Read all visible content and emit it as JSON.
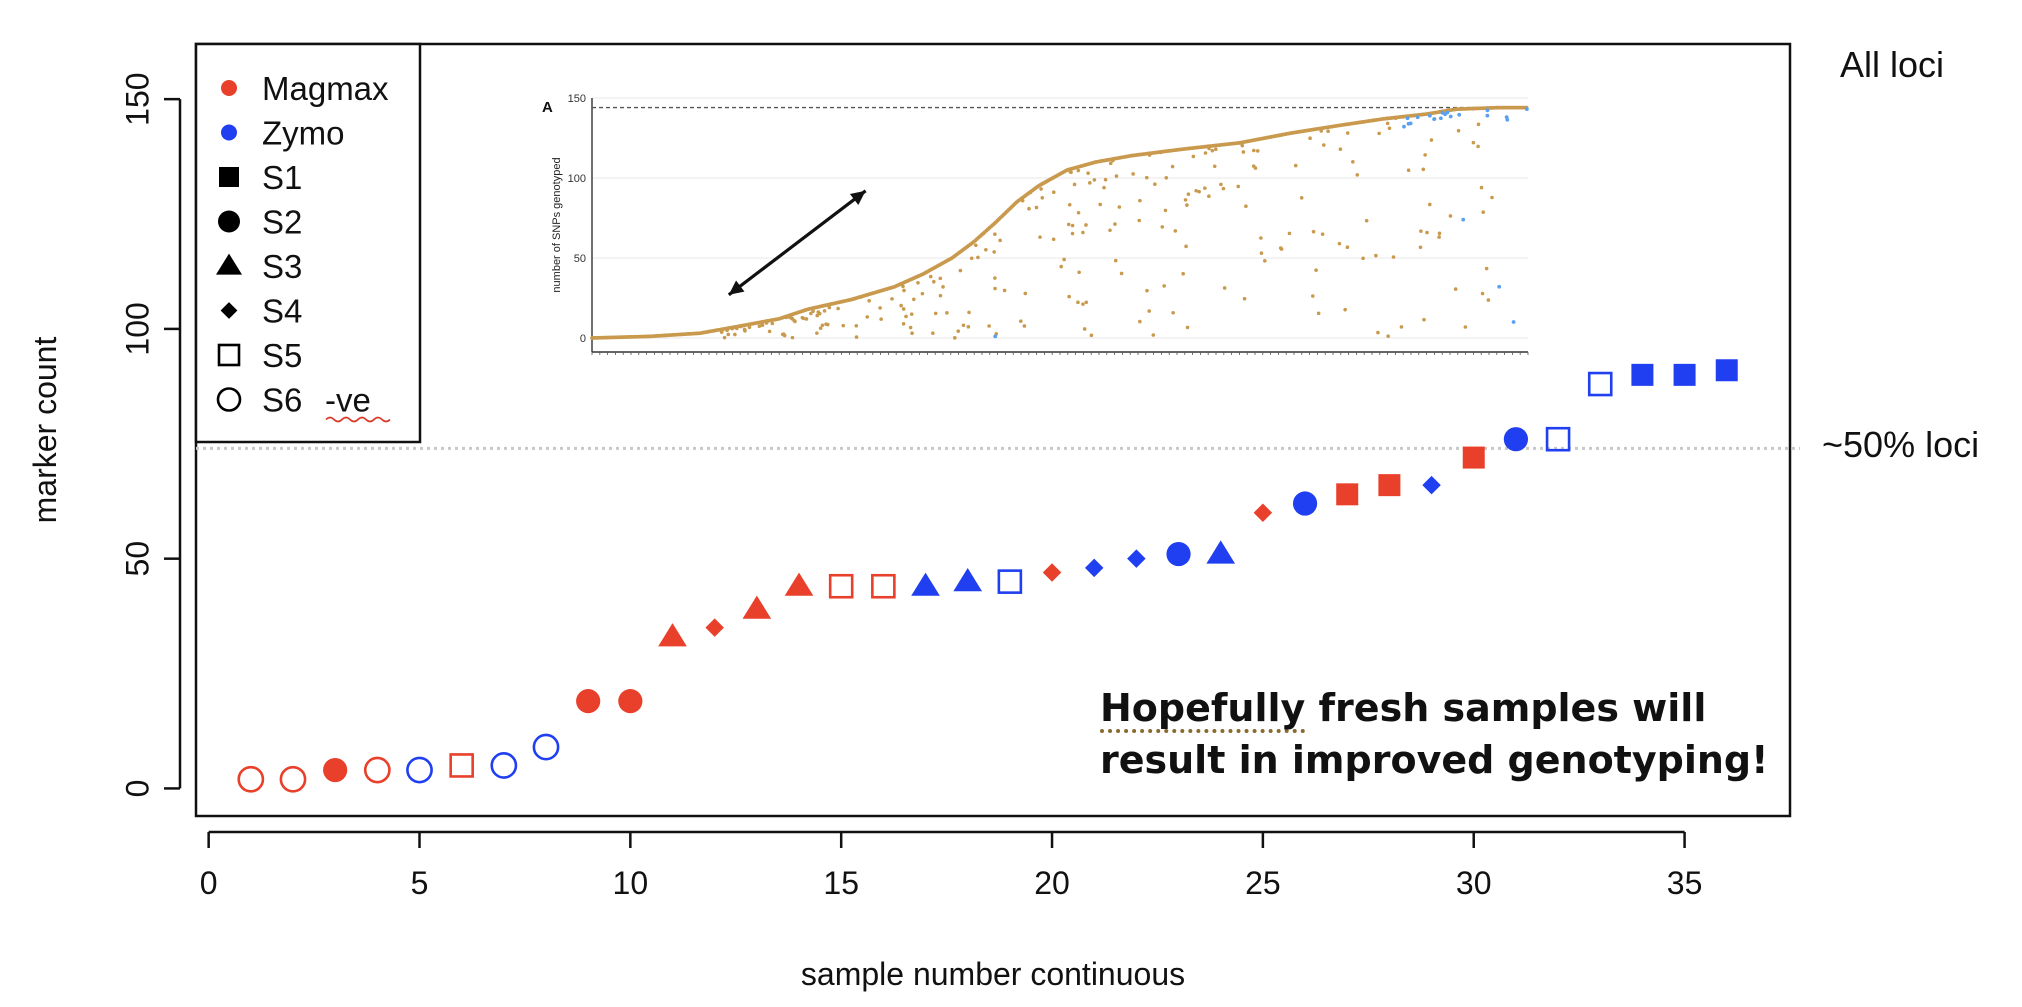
{
  "chart_data": {
    "type": "scatter",
    "title": "",
    "xlabel": "sample number continuous",
    "ylabel": "marker count",
    "xlim": [
      -0.3,
      37.5
    ],
    "ylim": [
      -6,
      162
    ],
    "x_ticks": [
      0,
      5,
      10,
      15,
      20,
      25,
      30,
      35
    ],
    "y_ticks": [
      0,
      50,
      100,
      150
    ],
    "grid": false,
    "reference_line": {
      "y": 74,
      "style": "dotted",
      "color": "#c8c8c8"
    },
    "colors": {
      "Magmax": "#e8402a",
      "Zymo": "#1f3ff0"
    },
    "legend": {
      "placement": "top-left",
      "entries": [
        {
          "label": "Magmax",
          "kind": "color",
          "color": "#e8402a"
        },
        {
          "label": "Zymo",
          "kind": "color",
          "color": "#1f3ff0"
        },
        {
          "label": "S1",
          "kind": "shape",
          "shape": "square"
        },
        {
          "label": "S2",
          "kind": "shape",
          "shape": "circle"
        },
        {
          "label": "S3",
          "kind": "shape",
          "shape": "triangle"
        },
        {
          "label": "S4",
          "kind": "shape",
          "shape": "diamond"
        },
        {
          "label": "S5",
          "kind": "shape",
          "shape": "open-square"
        },
        {
          "label": "S6",
          "kind": "shape",
          "shape": "open-circle"
        }
      ],
      "suffix": "-ve"
    },
    "points": [
      {
        "x": 1,
        "y": 2,
        "kit": "Magmax",
        "shape": "open-circle"
      },
      {
        "x": 2,
        "y": 2,
        "kit": "Magmax",
        "shape": "open-circle"
      },
      {
        "x": 3,
        "y": 4,
        "kit": "Magmax",
        "shape": "circle"
      },
      {
        "x": 4,
        "y": 4,
        "kit": "Magmax",
        "shape": "open-circle"
      },
      {
        "x": 5,
        "y": 4,
        "kit": "Zymo",
        "shape": "open-circle"
      },
      {
        "x": 6,
        "y": 5,
        "kit": "Magmax",
        "shape": "open-square"
      },
      {
        "x": 7,
        "y": 5,
        "kit": "Zymo",
        "shape": "open-circle"
      },
      {
        "x": 8,
        "y": 9,
        "kit": "Zymo",
        "shape": "open-circle"
      },
      {
        "x": 9,
        "y": 19,
        "kit": "Magmax",
        "shape": "circle"
      },
      {
        "x": 10,
        "y": 19,
        "kit": "Magmax",
        "shape": "circle"
      },
      {
        "x": 11,
        "y": 33,
        "kit": "Magmax",
        "shape": "triangle"
      },
      {
        "x": 12,
        "y": 35,
        "kit": "Magmax",
        "shape": "diamond"
      },
      {
        "x": 13,
        "y": 39,
        "kit": "Magmax",
        "shape": "triangle"
      },
      {
        "x": 14,
        "y": 44,
        "kit": "Magmax",
        "shape": "triangle"
      },
      {
        "x": 15,
        "y": 44,
        "kit": "Magmax",
        "shape": "open-square"
      },
      {
        "x": 16,
        "y": 44,
        "kit": "Magmax",
        "shape": "open-square"
      },
      {
        "x": 17,
        "y": 44,
        "kit": "Zymo",
        "shape": "triangle"
      },
      {
        "x": 18,
        "y": 45,
        "kit": "Zymo",
        "shape": "triangle"
      },
      {
        "x": 19,
        "y": 45,
        "kit": "Zymo",
        "shape": "open-square"
      },
      {
        "x": 20,
        "y": 47,
        "kit": "Magmax",
        "shape": "diamond"
      },
      {
        "x": 21,
        "y": 48,
        "kit": "Zymo",
        "shape": "diamond"
      },
      {
        "x": 22,
        "y": 50,
        "kit": "Zymo",
        "shape": "diamond"
      },
      {
        "x": 23,
        "y": 51,
        "kit": "Zymo",
        "shape": "circle"
      },
      {
        "x": 24,
        "y": 51,
        "kit": "Zymo",
        "shape": "triangle"
      },
      {
        "x": 25,
        "y": 60,
        "kit": "Magmax",
        "shape": "diamond"
      },
      {
        "x": 26,
        "y": 62,
        "kit": "Zymo",
        "shape": "circle"
      },
      {
        "x": 27,
        "y": 64,
        "kit": "Magmax",
        "shape": "square"
      },
      {
        "x": 28,
        "y": 66,
        "kit": "Magmax",
        "shape": "square"
      },
      {
        "x": 29,
        "y": 66,
        "kit": "Zymo",
        "shape": "diamond"
      },
      {
        "x": 30,
        "y": 72,
        "kit": "Magmax",
        "shape": "square"
      },
      {
        "x": 31,
        "y": 76,
        "kit": "Zymo",
        "shape": "circle"
      },
      {
        "x": 32,
        "y": 76,
        "kit": "Zymo",
        "shape": "open-square"
      },
      {
        "x": 33,
        "y": 88,
        "kit": "Zymo",
        "shape": "open-square"
      },
      {
        "x": 34,
        "y": 90,
        "kit": "Zymo",
        "shape": "square"
      },
      {
        "x": 35,
        "y": 90,
        "kit": "Zymo",
        "shape": "square"
      },
      {
        "x": 36,
        "y": 91,
        "kit": "Zymo",
        "shape": "square"
      }
    ],
    "annotations": {
      "all_loci": "All loci",
      "half_loci": "~50% loci",
      "note_highlight": "Hopefully",
      "note_line1_rest": " fresh samples will",
      "note_line2": "result in improved genotyping!"
    },
    "inset": {
      "type": "scatter",
      "panel_label": "A",
      "ylabel": "number of SNPs genotyped",
      "ylim": [
        0,
        150
      ],
      "y_ticks": [
        0,
        50,
        100,
        150
      ],
      "max_line": 144,
      "colors": {
        "main": "#c99a4e",
        "secondary": "#5aa0f0"
      },
      "trend_curve": [
        [
          0,
          0
        ],
        [
          8,
          1
        ],
        [
          15,
          3
        ],
        [
          20,
          7
        ],
        [
          26,
          12
        ],
        [
          30,
          18
        ],
        [
          36,
          24
        ],
        [
          42,
          32
        ],
        [
          46,
          40
        ],
        [
          50,
          50
        ],
        [
          53,
          60
        ],
        [
          56,
          72
        ],
        [
          59,
          85
        ],
        [
          62,
          95
        ],
        [
          66,
          105
        ],
        [
          70,
          110
        ],
        [
          75,
          114
        ],
        [
          82,
          118
        ],
        [
          90,
          122
        ],
        [
          97,
          128
        ],
        [
          104,
          133
        ],
        [
          110,
          137
        ],
        [
          116,
          140
        ],
        [
          120,
          143
        ],
        [
          126,
          144
        ],
        [
          130,
          144
        ]
      ],
      "arrow": {
        "from": [
          19,
          27
        ],
        "to": [
          38,
          92
        ]
      }
    }
  }
}
